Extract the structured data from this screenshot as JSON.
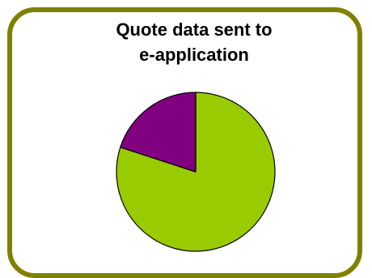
{
  "colors": {
    "frame_border": "#808000",
    "background": "#ffffff"
  },
  "chart_data": {
    "type": "pie",
    "title_lines": [
      "Quote data sent to",
      "e-application"
    ],
    "slices": [
      {
        "value": 80,
        "color": "#99cc00"
      },
      {
        "value": 20,
        "color": "#800080"
      }
    ],
    "start_angle_deg": 0,
    "direction": "clockwise",
    "legend": "none"
  }
}
